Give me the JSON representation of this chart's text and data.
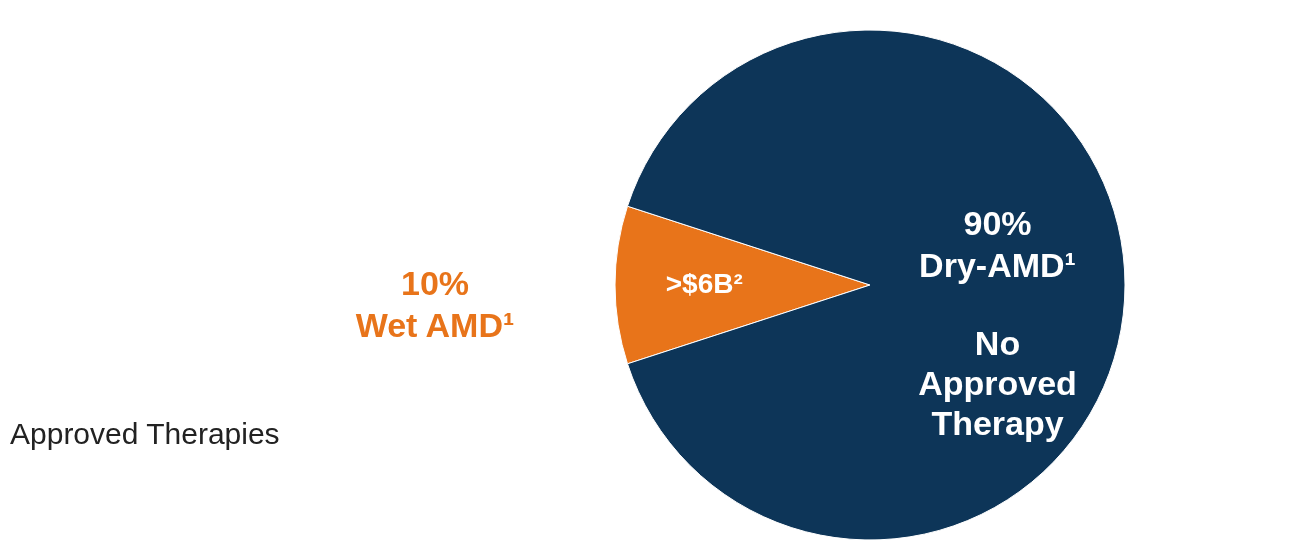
{
  "chart_data": {
    "type": "pie",
    "categories": [
      "Wet AMD¹",
      "Dry-AMD¹"
    ],
    "values": [
      10,
      90
    ],
    "colors": [
      "#e8741a",
      "#0d3558"
    ],
    "value_labels": [
      "10%",
      "90%"
    ],
    "annotations": [
      ">$6B²",
      "No Approved Therapy",
      "Approved Therapies"
    ]
  }
}
